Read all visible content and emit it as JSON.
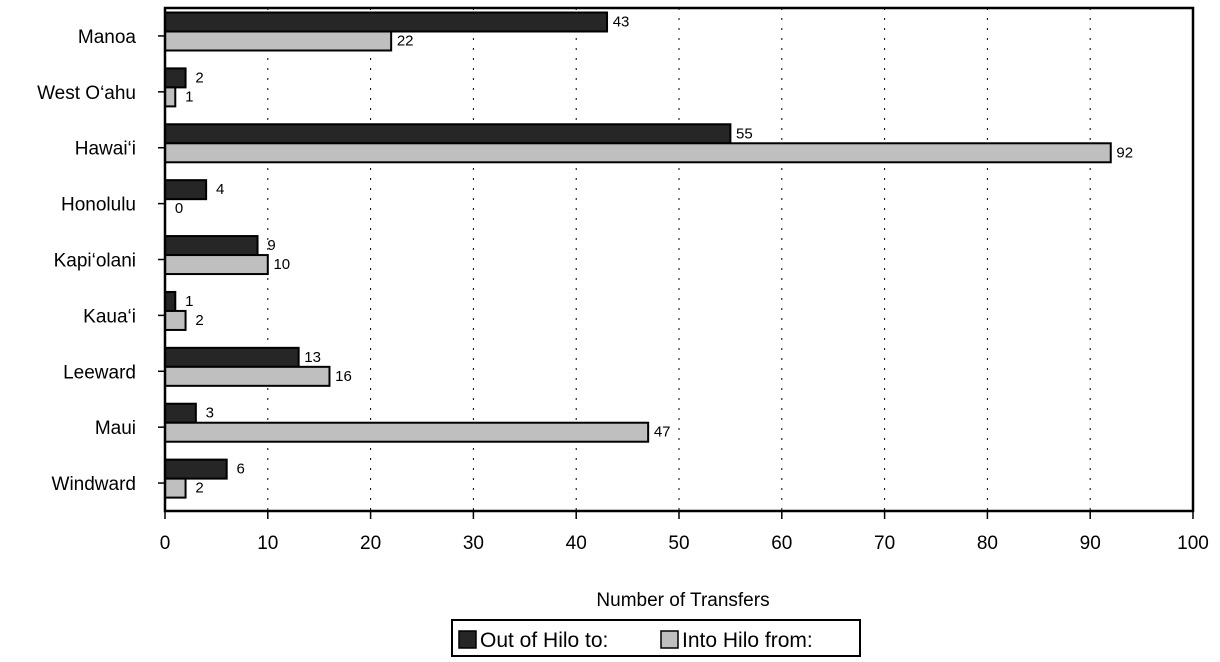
{
  "chart_data": {
    "type": "bar",
    "orientation": "horizontal",
    "categories": [
      "Manoa",
      "West O‘ahu",
      "Hawai‘i",
      "Honolulu",
      "Kapi‘olani",
      "Kaua‘i",
      "Leeward",
      "Maui",
      "Windward"
    ],
    "series": [
      {
        "name": "Out of Hilo to:",
        "color": "#262626",
        "values": [
          43,
          2,
          55,
          4,
          9,
          1,
          13,
          3,
          6
        ]
      },
      {
        "name": "Into Hilo from:",
        "color": "#bfbfbf",
        "values": [
          22,
          1,
          92,
          0,
          10,
          2,
          16,
          47,
          2
        ]
      }
    ],
    "xlabel": "Number of Transfers",
    "xlim": [
      0,
      100
    ],
    "xticks": [
      0,
      10,
      20,
      30,
      40,
      50,
      60,
      70,
      80,
      90,
      100
    ],
    "grid": "vertical dotted",
    "legend_position": "bottom-center",
    "data_labels": true
  }
}
